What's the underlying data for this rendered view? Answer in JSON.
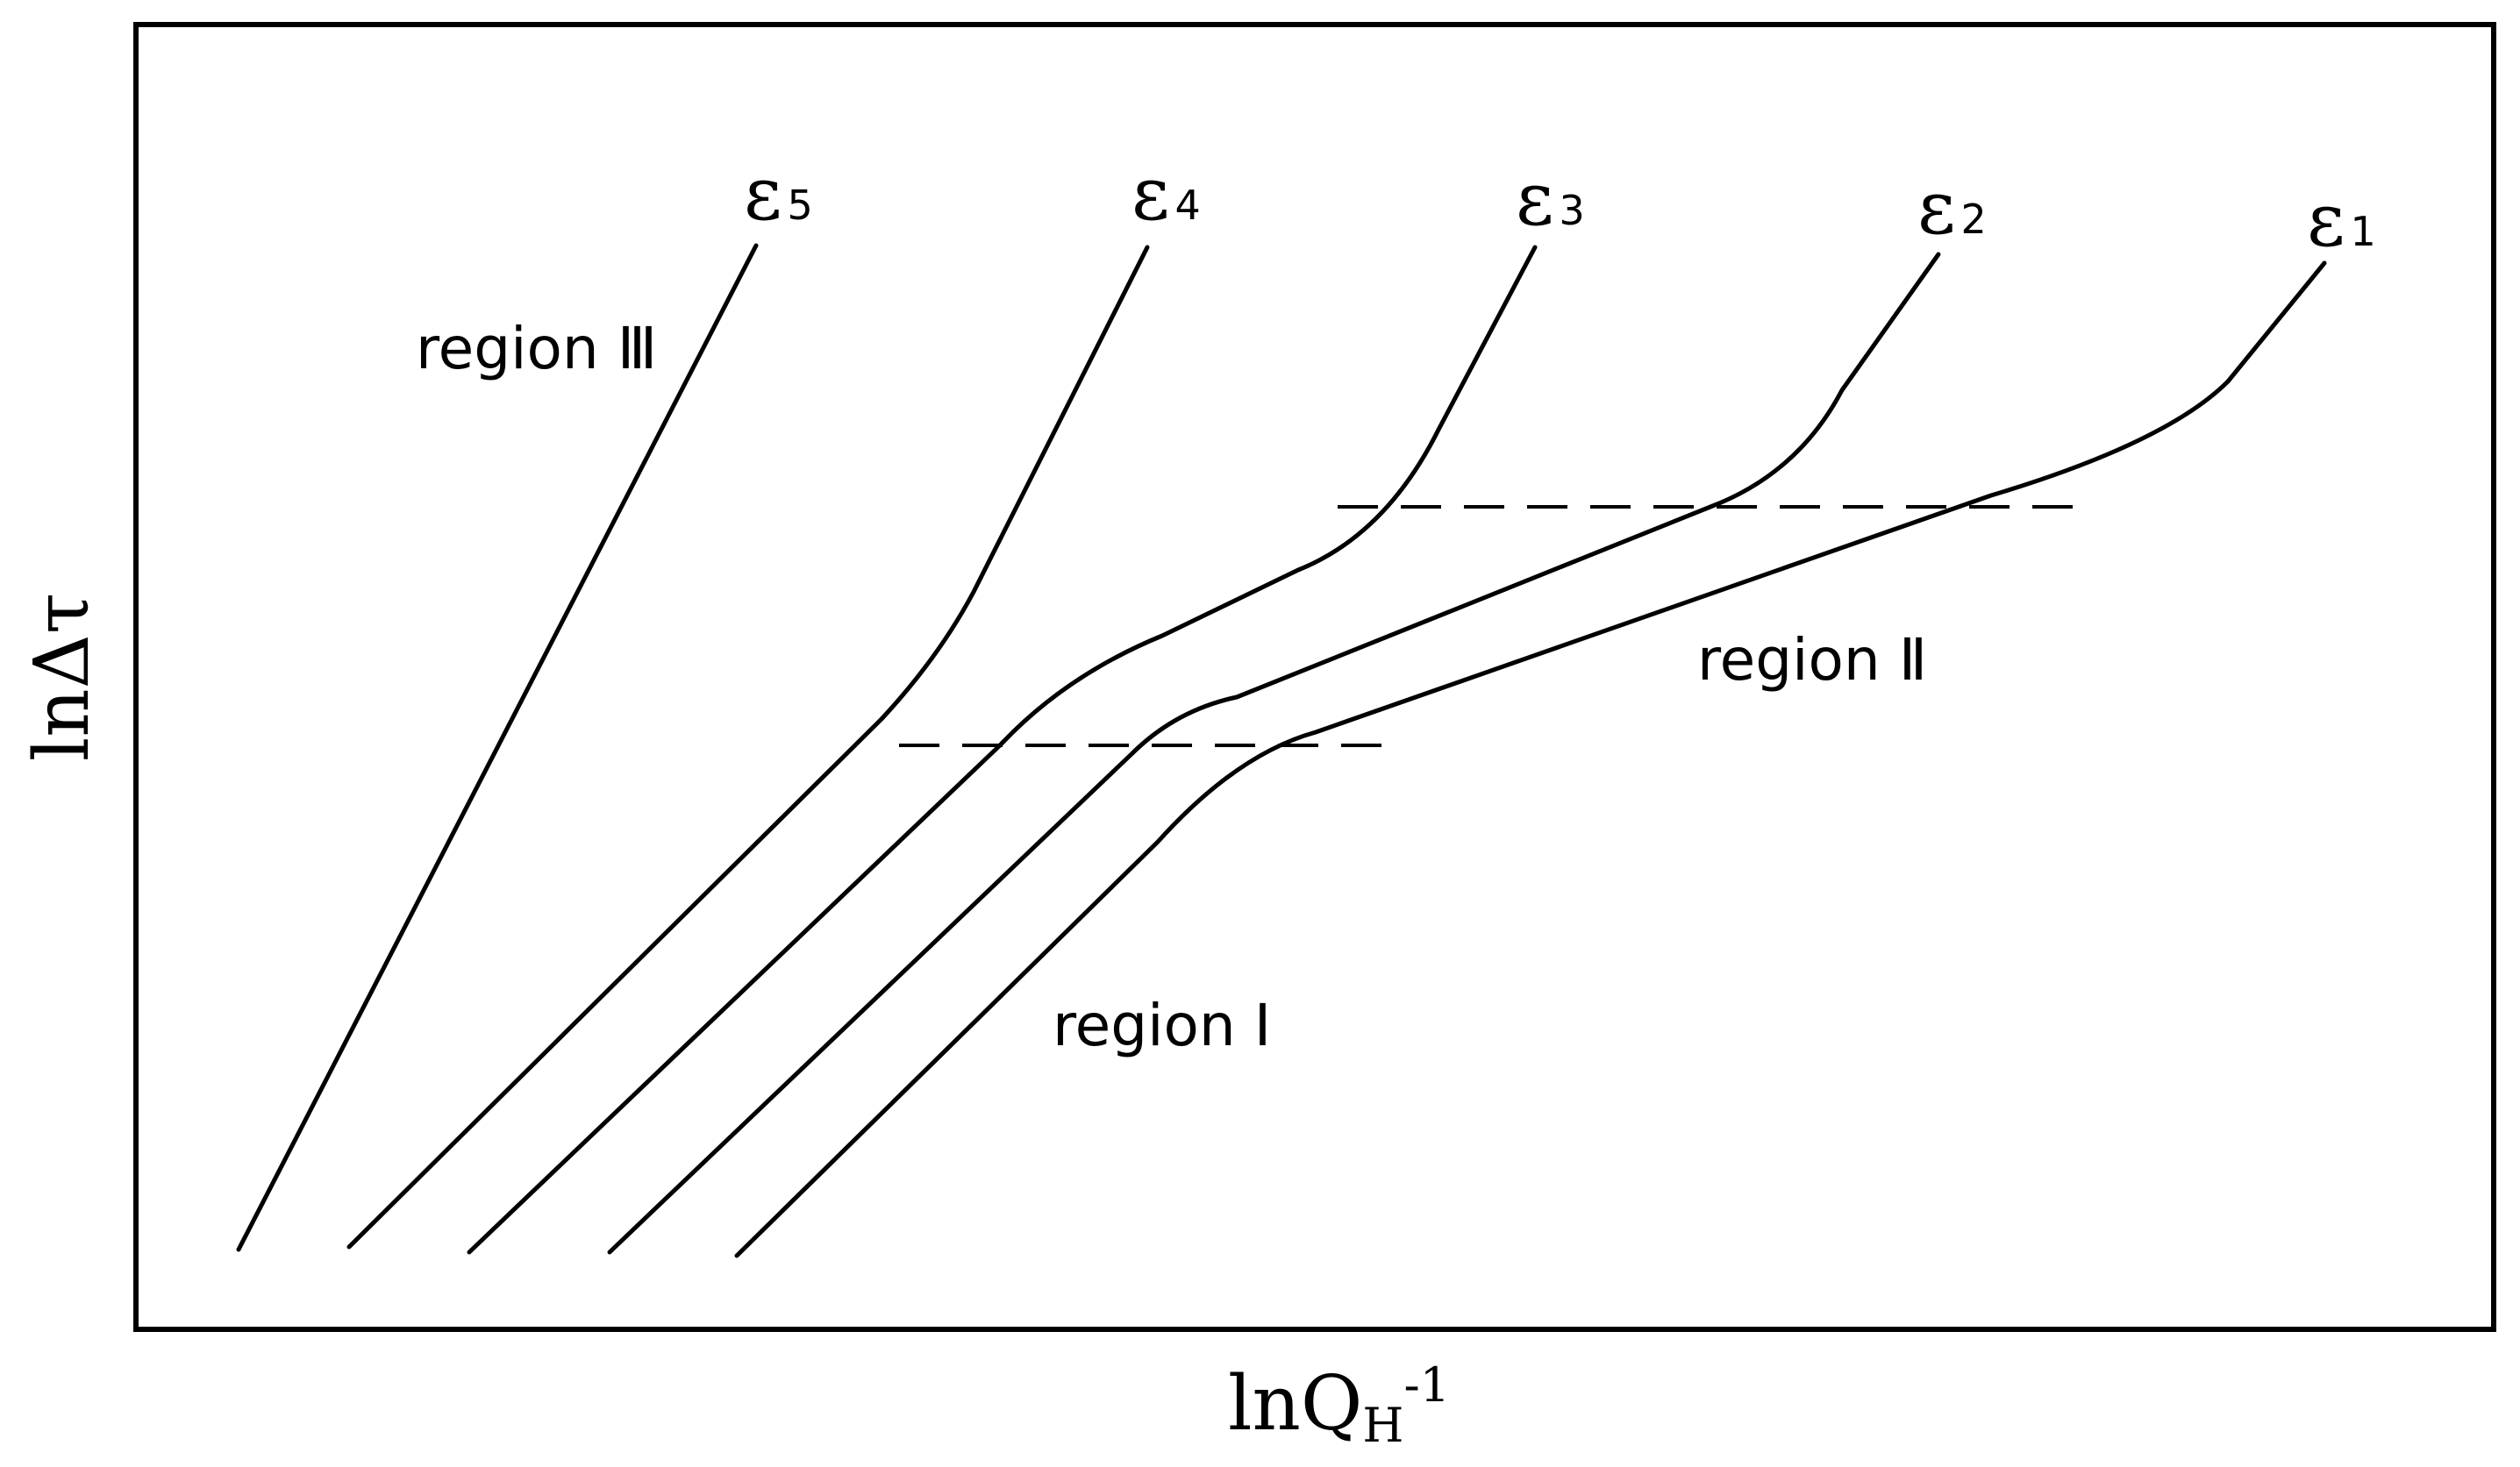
{
  "axes": {
    "x_label": "lnQ",
    "x_label_sub": "H",
    "x_label_sup": "-1",
    "y_label": "lnΔτ"
  },
  "regions": {
    "r1": "region I",
    "r2": "region Ⅱ",
    "r3": "region Ⅲ"
  },
  "series": [
    {
      "symbol": "ε",
      "index": "5"
    },
    {
      "symbol": "ε",
      "index": "4"
    },
    {
      "symbol": "ε",
      "index": "3"
    },
    {
      "symbol": "ε",
      "index": "2"
    },
    {
      "symbol": "ε",
      "index": "1"
    }
  ]
}
